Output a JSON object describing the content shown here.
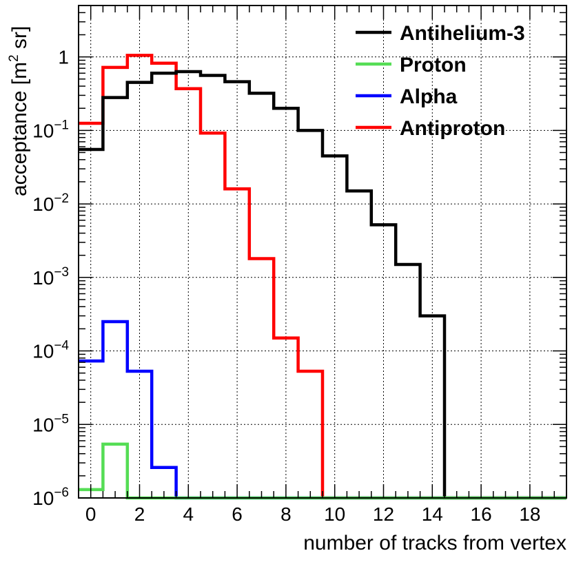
{
  "chart_data": {
    "type": "histogram",
    "xlabel": "number of tracks from vertex",
    "ylabel_main": "acceptance [m",
    "ylabel_sup": "2",
    "ylabel_tail": " sr]",
    "x_range": [
      -0.5,
      19.5
    ],
    "y_range": [
      1e-06,
      5
    ],
    "y_scale": "log",
    "grid": true,
    "legend_position": "top-right",
    "x_ticks": [
      0,
      2,
      4,
      6,
      8,
      10,
      12,
      14,
      16,
      18
    ],
    "x_tick_labels": [
      "0",
      "2",
      "4",
      "6",
      "8",
      "10",
      "12",
      "14",
      "16",
      "18"
    ],
    "y_ticks": [
      {
        "value": 1e-06,
        "base": "10",
        "exp": "−6"
      },
      {
        "value": 1e-05,
        "base": "10",
        "exp": "−5"
      },
      {
        "value": 0.0001,
        "base": "10",
        "exp": "−4"
      },
      {
        "value": 0.001,
        "base": "10",
        "exp": "−3"
      },
      {
        "value": 0.01,
        "base": "10",
        "exp": "−2"
      },
      {
        "value": 0.1,
        "base": "10",
        "exp": "−1"
      },
      {
        "value": 1,
        "base": "1",
        "exp": ""
      }
    ],
    "bins": [
      0,
      1,
      2,
      3,
      4,
      5,
      6,
      7,
      8,
      9,
      10,
      11,
      12,
      13,
      14,
      15,
      16,
      17,
      18,
      19
    ],
    "bin_width": 1,
    "series": [
      {
        "name": "Antihelium-3",
        "color": "#000000",
        "values": [
          0.055,
          0.28,
          0.45,
          0.6,
          0.63,
          0.56,
          0.46,
          0.32,
          0.2,
          0.1,
          0.045,
          0.015,
          0.0052,
          0.0015,
          0.0003,
          0,
          0,
          0,
          0,
          0
        ]
      },
      {
        "name": "Proton",
        "color": "#55dd55",
        "values": [
          1.3e-06,
          5.4e-06,
          0,
          0,
          0,
          0,
          0,
          0,
          0,
          0,
          0,
          0,
          0,
          0,
          0,
          0,
          0,
          0,
          0,
          0
        ]
      },
      {
        "name": "Alpha",
        "color": "#0000ff",
        "values": [
          7.3e-05,
          0.00025,
          5.3e-05,
          2.6e-06,
          0,
          0,
          0,
          0,
          0,
          0,
          0,
          0,
          0,
          0,
          0,
          0,
          0,
          0,
          0,
          0
        ]
      },
      {
        "name": "Antiproton",
        "color": "#ff0000",
        "values": [
          0.125,
          0.72,
          1.05,
          0.82,
          0.37,
          0.092,
          0.016,
          0.0018,
          0.00015,
          5.3e-05,
          0,
          0,
          0,
          0,
          0,
          0,
          0,
          0,
          0,
          0
        ]
      }
    ],
    "draw_order": [
      "Antiproton",
      "Alpha",
      "Antihelium-3",
      "Proton"
    ]
  }
}
